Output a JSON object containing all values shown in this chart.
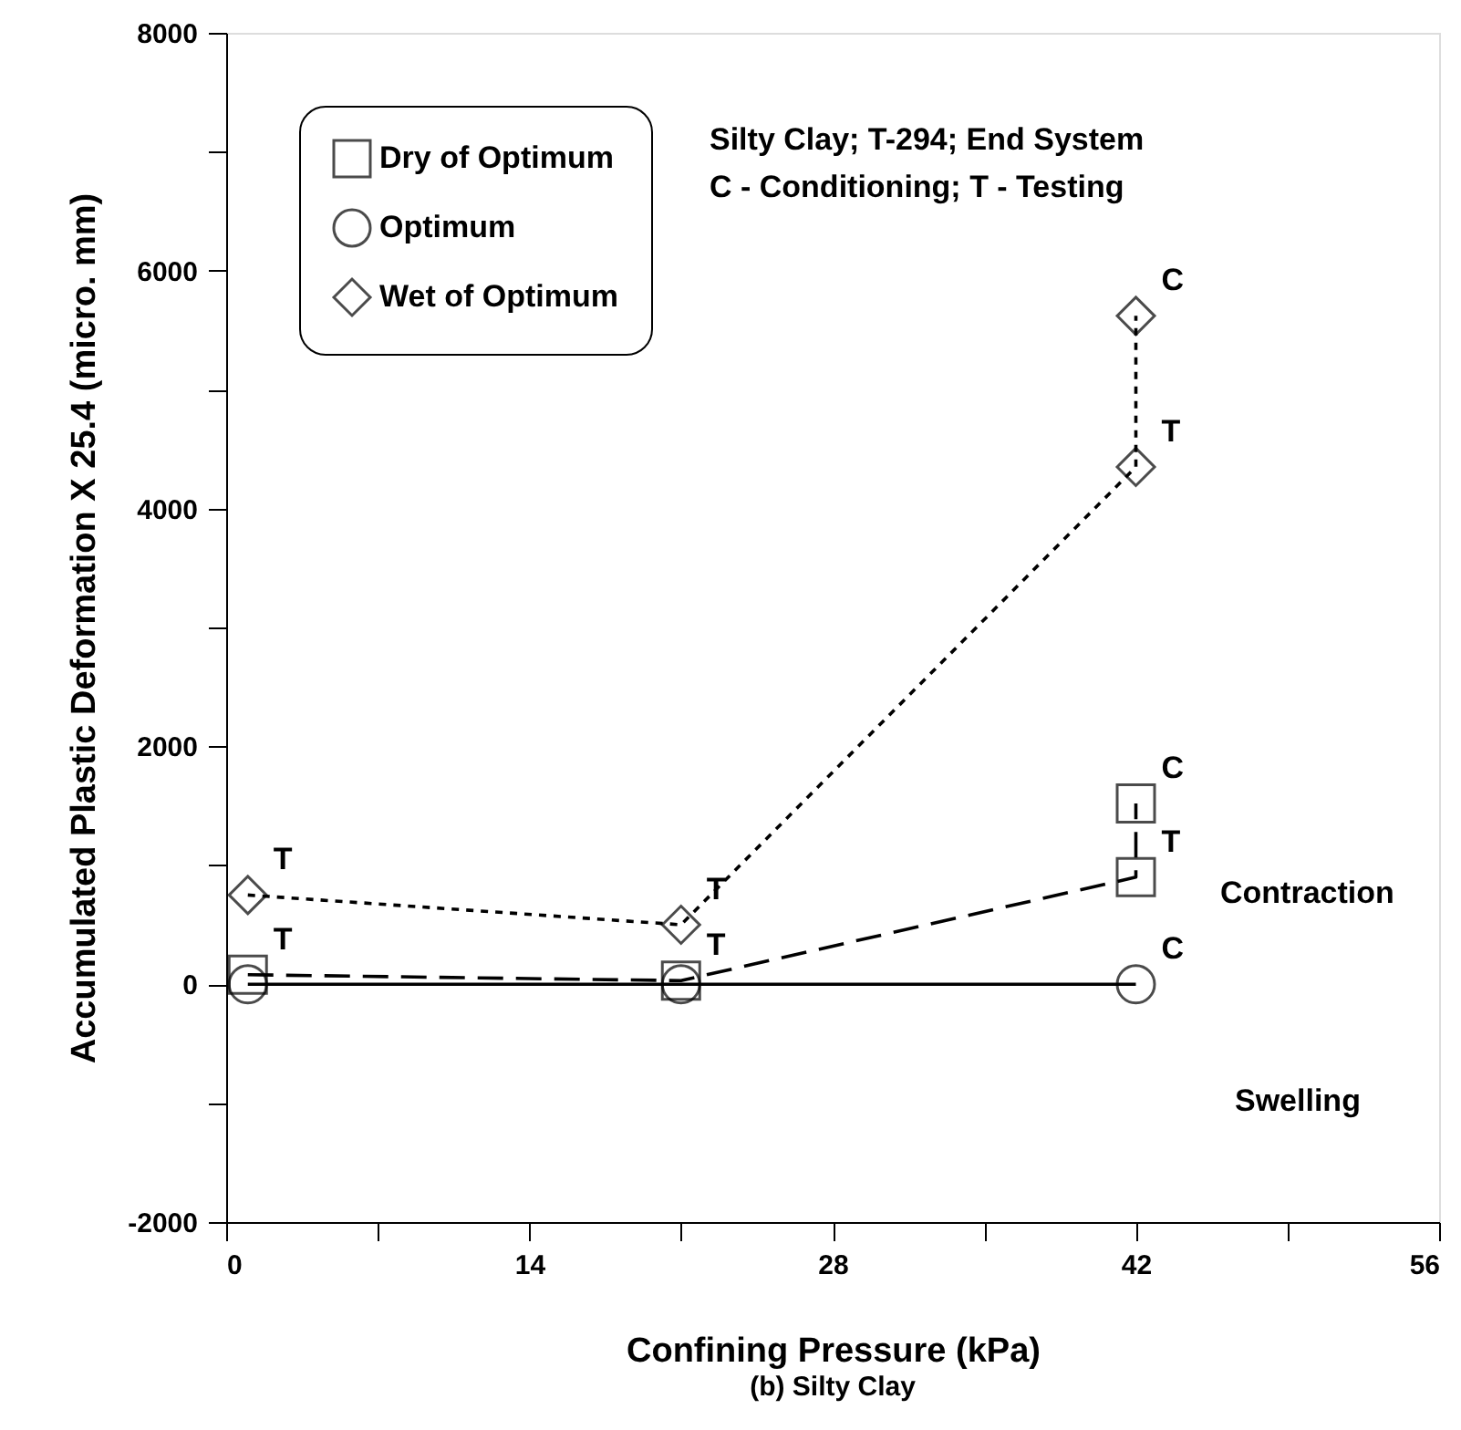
{
  "chart_data": {
    "type": "line",
    "xlabel": "Confining Pressure (kPa)",
    "ylabel": "Accumulated Plastic Deformation X 25.4 (micro. mm)",
    "xlim": [
      0,
      56
    ],
    "xticks": [
      0,
      {
        "value": 7,
        "label": null
      },
      14,
      {
        "value": 21,
        "label": null
      },
      28,
      {
        "value": 35,
        "label": null
      },
      42,
      {
        "value": 49,
        "label": null
      },
      56
    ],
    "ylim": [
      -2000,
      8000
    ],
    "yticks": [
      -2000,
      {
        "value": -1000,
        "label": null
      },
      0,
      {
        "value": 1000,
        "label": null
      },
      2000,
      {
        "value": 3000,
        "label": null
      },
      4000,
      {
        "value": 5000,
        "label": null
      },
      6000,
      {
        "value": 7000,
        "label": null
      },
      8000
    ],
    "grid": false,
    "legend": "top left",
    "series": [
      {
        "name": "Dry of Optimum",
        "color": "#000000",
        "marker": "square",
        "line_style": "dashed",
        "x": [
          1,
          21,
          42,
          42
        ],
        "values": [
          80,
          30,
          900,
          1520
        ]
      },
      {
        "name": "Optimum",
        "color": "#000000",
        "marker": "circle",
        "line_style": "solid",
        "x": [
          1,
          21,
          42
        ],
        "values": [
          0,
          0,
          0
        ]
      },
      {
        "name": "Wet of Optimum",
        "color": "#000000",
        "marker": "diamond",
        "line_style": "dotted",
        "x": [
          1,
          21,
          42,
          42
        ],
        "values": [
          750,
          500,
          4350,
          5620
        ]
      }
    ],
    "annotations": [
      "Silty Clay; T-294; End System",
      "C - Conditioning; T - Testing",
      "Contraction",
      "Swelling",
      "(b) Silty Clay",
      {
        "text": "T",
        "x": 1,
        "y": 750
      },
      {
        "text": "T",
        "x": 21,
        "y": 500
      },
      {
        "text": "T",
        "x": 42,
        "y": 4350
      },
      {
        "text": "C",
        "x": 42,
        "y": 5620
      },
      {
        "text": "T",
        "x": 1,
        "y": 80
      },
      {
        "text": "T",
        "x": 21,
        "y": 30
      },
      {
        "text": "T",
        "x": 42,
        "y": 900
      },
      {
        "text": "C",
        "x": 42,
        "y": 1520
      },
      {
        "text": "C",
        "x": 42,
        "y": 0
      }
    ]
  }
}
